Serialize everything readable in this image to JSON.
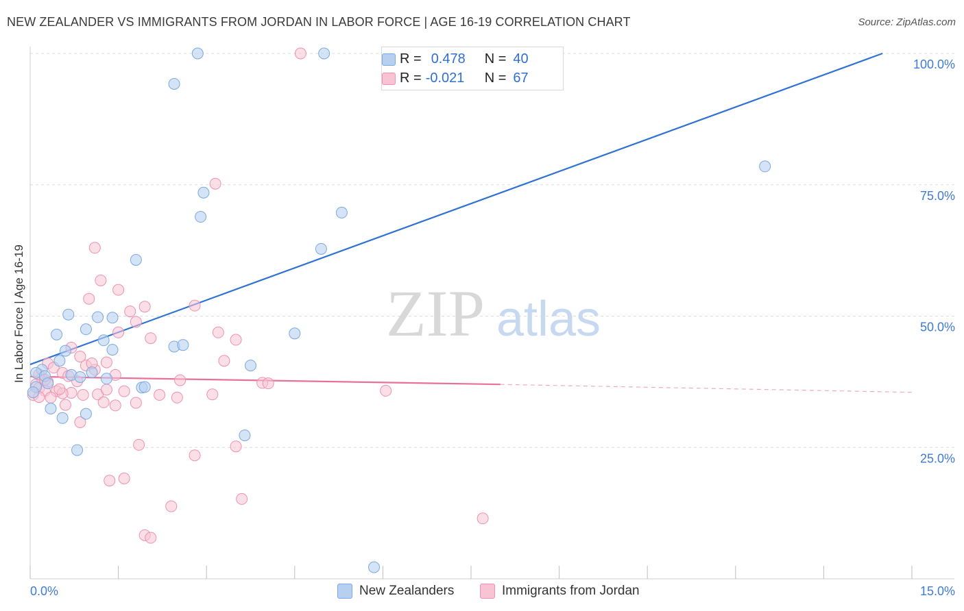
{
  "title": "NEW ZEALANDER VS IMMIGRANTS FROM JORDAN IN LABOR FORCE | AGE 16-19 CORRELATION CHART",
  "source": "Source: ZipAtlas.com",
  "watermark": {
    "zip": "ZIP",
    "atlas": "atlas"
  },
  "legend_top": {
    "rows": [
      {
        "r_label": "R =",
        "r_value": "0.478",
        "n_label": "N =",
        "n_value": "40"
      },
      {
        "r_label": "R =",
        "r_value": "-0.021",
        "n_label": "N =",
        "n_value": "67"
      }
    ]
  },
  "legend_bottom": {
    "items": [
      "New Zealanders",
      "Immigrants from Jordan"
    ]
  },
  "colors": {
    "blue_fill": "#b8d0f0",
    "blue_stroke": "#7aa8e0",
    "blue_line": "#2e72d2",
    "pink_fill": "#f8c4d4",
    "pink_stroke": "#ee90b0",
    "pink_line": "#e8709a",
    "axis_text": "#3e7bd6",
    "grid": "#dcdcdc"
  },
  "chart_data": {
    "type": "scatter",
    "title": "NEW ZEALANDER VS IMMIGRANTS FROM JORDAN IN LABOR FORCE | AGE 16-19 CORRELATION CHART",
    "xlabel": "",
    "ylabel": "In Labor Force | Age 16-19",
    "xlim": [
      0,
      15
    ],
    "ylim": [
      0,
      100
    ],
    "x_tick_labels": [
      {
        "value": 0,
        "label": "0.0%"
      },
      {
        "value": 15,
        "label": "15.0%"
      }
    ],
    "y_tick_labels": [
      {
        "value": 25,
        "label": "25.0%"
      },
      {
        "value": 50,
        "label": "50.0%"
      },
      {
        "value": 75,
        "label": "75.0%"
      },
      {
        "value": 100,
        "label": "100.0%"
      }
    ],
    "grid": true,
    "legend_position": "top-center",
    "series": [
      {
        "name": "New Zealanders",
        "r": 0.478,
        "n": 40,
        "trend": {
          "x0": 0,
          "y0": 40.8,
          "x1": 14.5,
          "y1": 100
        },
        "points": [
          [
            2.85,
            100
          ],
          [
            5.0,
            100
          ],
          [
            2.45,
            94.2
          ],
          [
            12.5,
            78.5
          ],
          [
            2.95,
            73.5
          ],
          [
            2.9,
            68.9
          ],
          [
            5.3,
            69.7
          ],
          [
            4.95,
            62.8
          ],
          [
            1.8,
            60.7
          ],
          [
            0.65,
            50.3
          ],
          [
            1.15,
            49.8
          ],
          [
            1.4,
            49.7
          ],
          [
            0.95,
            47.5
          ],
          [
            0.45,
            46.5
          ],
          [
            4.5,
            46.7
          ],
          [
            1.25,
            45.4
          ],
          [
            1.4,
            43.6
          ],
          [
            2.45,
            44.2
          ],
          [
            2.6,
            44.5
          ],
          [
            0.6,
            43.4
          ],
          [
            0.5,
            41.5
          ],
          [
            3.75,
            40.6
          ],
          [
            0.2,
            39.8
          ],
          [
            0.1,
            39.2
          ],
          [
            0.25,
            38.6
          ],
          [
            0.7,
            38.8
          ],
          [
            0.85,
            38.4
          ],
          [
            1.05,
            39.3
          ],
          [
            1.3,
            38.1
          ],
          [
            0.3,
            37.2
          ],
          [
            0.1,
            36.5
          ],
          [
            1.9,
            36.4
          ],
          [
            1.95,
            36.5
          ],
          [
            0.05,
            35.5
          ],
          [
            0.35,
            32.4
          ],
          [
            0.55,
            30.6
          ],
          [
            0.95,
            31.4
          ],
          [
            3.65,
            27.3
          ],
          [
            0.8,
            24.5
          ],
          [
            5.85,
            2.2
          ]
        ]
      },
      {
        "name": "Immigrants from Jordan",
        "r": -0.021,
        "n": 67,
        "trend": {
          "x0": 0,
          "y0": 38.5,
          "x1": 8.0,
          "y1": 37.0
        },
        "trend_dashed": {
          "x0": 8.0,
          "y0": 37.0,
          "x1": 15.0,
          "y1": 35.5
        },
        "points": [
          [
            4.6,
            100
          ],
          [
            3.15,
            75.2
          ],
          [
            1.1,
            63.0
          ],
          [
            1.2,
            56.8
          ],
          [
            1.5,
            55.0
          ],
          [
            1.0,
            53.3
          ],
          [
            1.95,
            51.8
          ],
          [
            2.8,
            52.0
          ],
          [
            1.7,
            50.9
          ],
          [
            1.8,
            48.9
          ],
          [
            1.5,
            46.9
          ],
          [
            3.2,
            46.9
          ],
          [
            2.05,
            45.8
          ],
          [
            3.5,
            45.5
          ],
          [
            0.7,
            44.0
          ],
          [
            0.85,
            42.3
          ],
          [
            0.3,
            41.0
          ],
          [
            1.3,
            41.2
          ],
          [
            3.3,
            41.5
          ],
          [
            0.4,
            40.2
          ],
          [
            0.55,
            39.2
          ],
          [
            0.95,
            40.6
          ],
          [
            1.1,
            39.8
          ],
          [
            0.65,
            38.6
          ],
          [
            0.2,
            38.2
          ],
          [
            0.3,
            37.5
          ],
          [
            0.1,
            37.0
          ],
          [
            1.45,
            38.8
          ],
          [
            2.55,
            37.8
          ],
          [
            3.95,
            37.3
          ],
          [
            4.05,
            37.2
          ],
          [
            0.15,
            36.3
          ],
          [
            0.25,
            35.8
          ],
          [
            0.45,
            35.7
          ],
          [
            0.7,
            35.4
          ],
          [
            0.55,
            35.3
          ],
          [
            0.05,
            35.0
          ],
          [
            0.15,
            34.6
          ],
          [
            0.35,
            34.5
          ],
          [
            0.9,
            35.0
          ],
          [
            1.15,
            35.1
          ],
          [
            1.3,
            36.0
          ],
          [
            1.6,
            35.7
          ],
          [
            2.2,
            35.0
          ],
          [
            2.5,
            34.5
          ],
          [
            3.1,
            35.1
          ],
          [
            6.05,
            35.8
          ],
          [
            1.25,
            33.6
          ],
          [
            1.45,
            33.0
          ],
          [
            1.8,
            33.5
          ],
          [
            0.6,
            33.1
          ],
          [
            0.85,
            29.8
          ],
          [
            1.85,
            25.5
          ],
          [
            2.8,
            23.5
          ],
          [
            3.5,
            25.2
          ],
          [
            1.35,
            18.7
          ],
          [
            1.6,
            19.1
          ],
          [
            2.4,
            13.8
          ],
          [
            3.6,
            15.2
          ],
          [
            7.7,
            11.5
          ],
          [
            1.95,
            8.3
          ],
          [
            2.05,
            7.8
          ],
          [
            0.15,
            38.9
          ],
          [
            0.25,
            37.9
          ],
          [
            1.05,
            41.0
          ],
          [
            0.8,
            37.6
          ],
          [
            0.5,
            36.1
          ]
        ]
      }
    ]
  }
}
